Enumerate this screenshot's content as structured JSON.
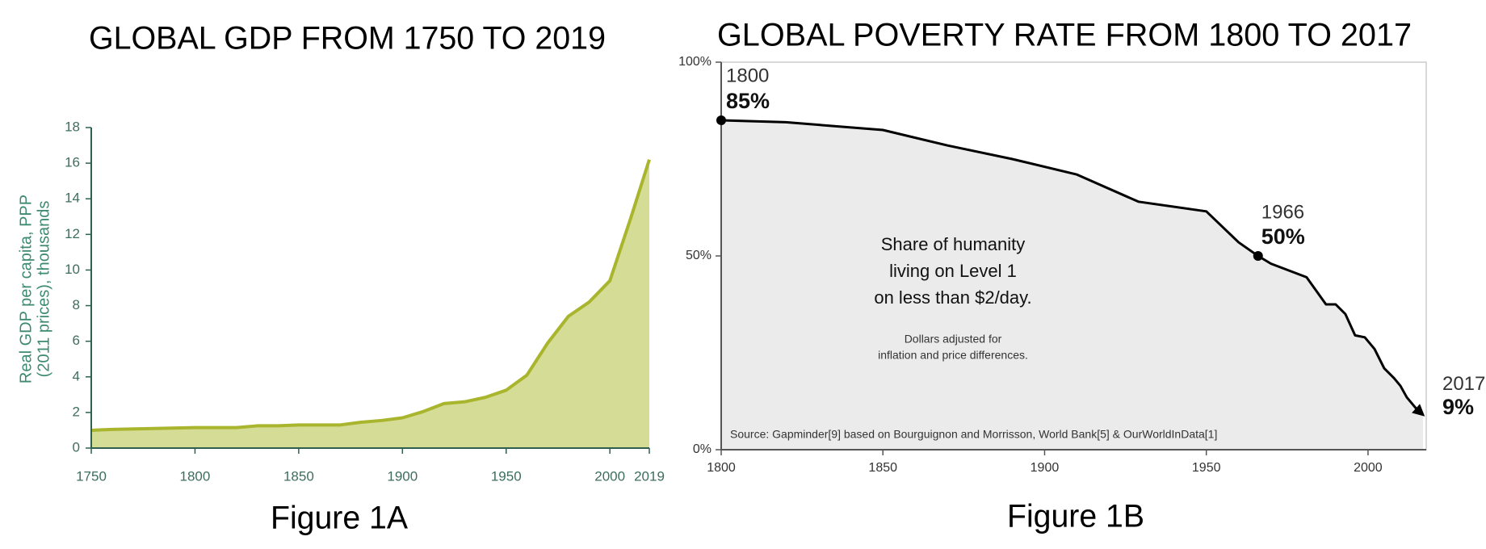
{
  "chart_data": [
    {
      "type": "area",
      "title": "GLOBAL GDP FROM 1750 TO 2019",
      "caption": "Figure 1A",
      "y_label": [
        "Real GDP per capita, PPP",
        "(2011 prices), thousands"
      ],
      "x": [
        1750,
        1760,
        1780,
        1800,
        1820,
        1830,
        1840,
        1850,
        1870,
        1880,
        1890,
        1900,
        1910,
        1920,
        1930,
        1940,
        1950,
        1960,
        1970,
        1980,
        1990,
        2000,
        2010,
        2019
      ],
      "values": [
        1.0,
        1.05,
        1.1,
        1.15,
        1.15,
        1.25,
        1.25,
        1.3,
        1.3,
        1.45,
        1.55,
        1.7,
        2.05,
        2.5,
        2.6,
        2.85,
        3.25,
        4.1,
        5.9,
        7.4,
        8.2,
        9.4,
        12.9,
        16.2
      ],
      "color": "#a9b52c",
      "fill_color": "#d4dc96",
      "xlim": [
        1750,
        2019
      ],
      "xticks": [
        1750,
        1800,
        1850,
        1900,
        1950,
        2000,
        2019
      ],
      "ylim": [
        0,
        18
      ],
      "yticks": [
        0,
        2,
        4,
        6,
        8,
        10,
        12,
        14,
        16,
        18
      ]
    },
    {
      "type": "line",
      "title": "GLOBAL POVERTY RATE FROM 1800 TO 2017",
      "caption": "Figure 1B",
      "x": [
        1800,
        1820,
        1850,
        1870,
        1890,
        1910,
        1929,
        1950,
        1960,
        1966,
        1970,
        1981,
        1987,
        1990,
        1993,
        1996,
        1999,
        2002,
        2005,
        2008,
        2010,
        2012,
        2015,
        2017
      ],
      "values": [
        85,
        84.5,
        82.5,
        78.5,
        75,
        71,
        64,
        61.5,
        53.5,
        50,
        48,
        44.5,
        37.5,
        37.5,
        35,
        29.5,
        29,
        26,
        21,
        18.5,
        16.5,
        13.5,
        10.5,
        9
      ],
      "color": "#000000",
      "fill_color": "#ebebeb",
      "xlim": [
        1800,
        2018
      ],
      "xticks": [
        1800,
        1850,
        1900,
        1950,
        2000
      ],
      "ylim": [
        0,
        100
      ],
      "yticks": [
        {
          "value": 0,
          "label": "0%"
        },
        {
          "value": 50,
          "label": "50%"
        },
        {
          "value": 100,
          "label": "100%"
        }
      ],
      "highlights": [
        {
          "x": 1800,
          "y": 85,
          "y_label": "85%"
        },
        {
          "x": 1966,
          "y": 50,
          "y_label": "50%"
        },
        {
          "x": 2017,
          "y": 9,
          "y_label": "9%"
        }
      ],
      "annotation_lines": [
        "Share of humanity",
        "living on Level 1",
        "on less than $2/day."
      ],
      "note_lines": [
        "Dollars adjusted for",
        "inflation and price differences."
      ],
      "source": "Source: Gapminder[9] based on Bourguignon and Morrisson, World Bank[5] & OurWorldInData[1]"
    }
  ]
}
